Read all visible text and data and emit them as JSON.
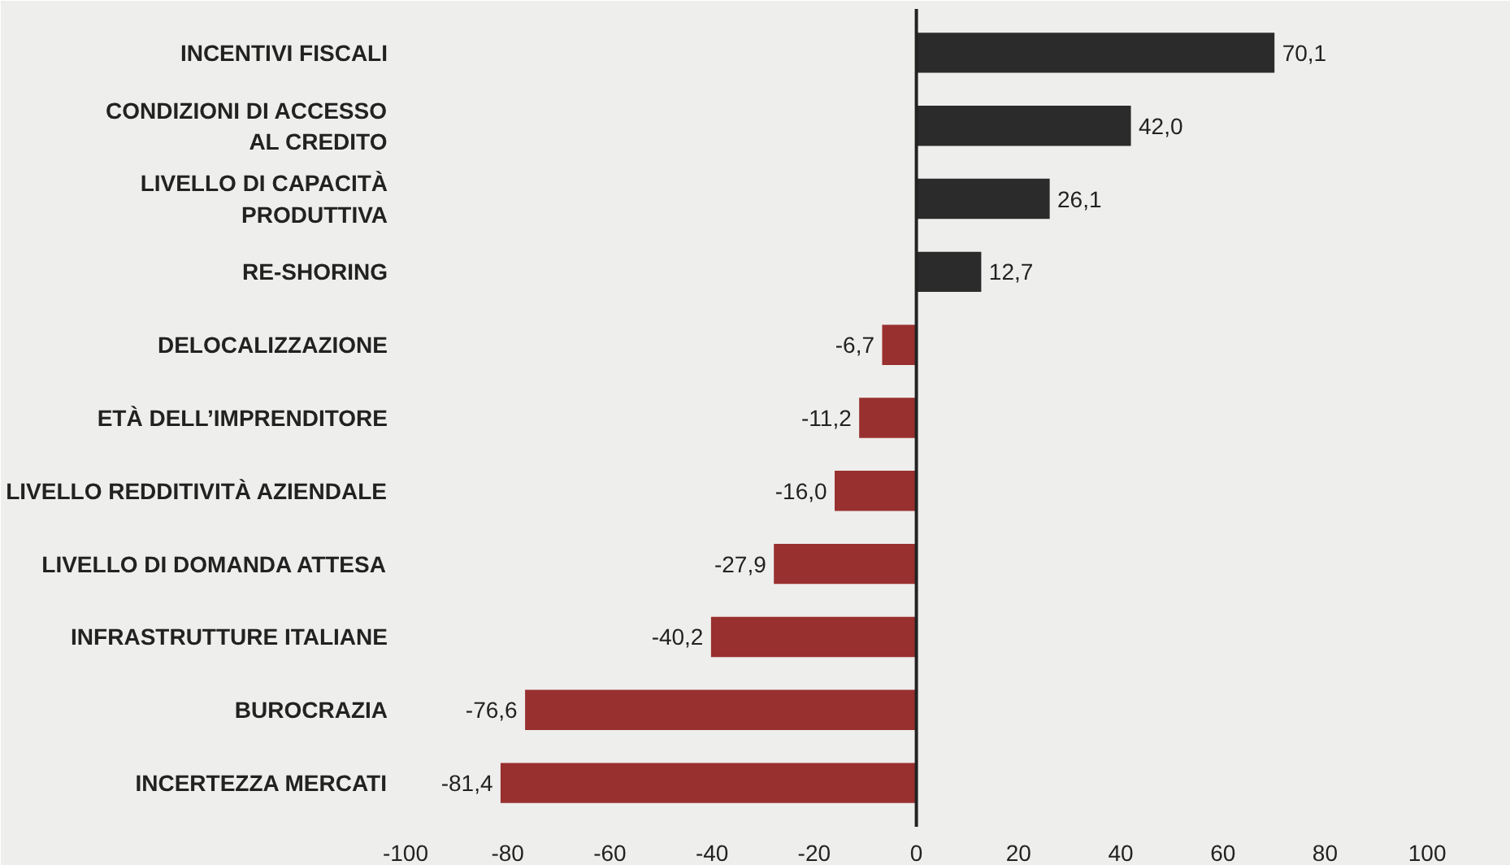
{
  "chart_data": {
    "type": "bar",
    "orientation": "horizontal",
    "categories": [
      "INCENTIVI FISCALI",
      "CONDIZIONI DI ACCESSO\nAL CREDITO",
      "LIVELLO DI CAPACITÀ\nPRODUTTIVA",
      "RE-SHORING",
      "DELOCALIZZAZIONE",
      "ETÀ DELL’IMPRENDITORE",
      "LIVELLO REDDITIVITÀ AZIENDALE",
      "LIVELLO DI DOMANDA ATTESA",
      "INFRASTRUTTURE ITALIANE",
      "BUROCRAZIA",
      "INCERTEZZA MERCATI"
    ],
    "values": [
      70.1,
      42.0,
      26.1,
      12.7,
      -6.7,
      -11.2,
      -16.0,
      -27.9,
      -40.2,
      -76.6,
      -81.4
    ],
    "value_labels": [
      "70,1",
      "42,0",
      "26,1",
      "12,7",
      "-6,7",
      "-11,2",
      "-16,0",
      "-27,9",
      "-40,2",
      "-76,6",
      "-81,4"
    ],
    "colors": [
      "#2b2b2b",
      "#2b2b2b",
      "#2b2b2b",
      "#2b2b2b",
      "#98302f",
      "#98302f",
      "#98302f",
      "#98302f",
      "#98302f",
      "#98302f",
      "#98302f"
    ],
    "xlim": [
      -100,
      110
    ],
    "xticks": [
      -100,
      -80,
      -60,
      -40,
      -20,
      0,
      20,
      40,
      60,
      80,
      100
    ],
    "ref_lines": [
      {
        "axis": "x",
        "value": 0,
        "color": "#222222"
      }
    ],
    "grid": false
  }
}
